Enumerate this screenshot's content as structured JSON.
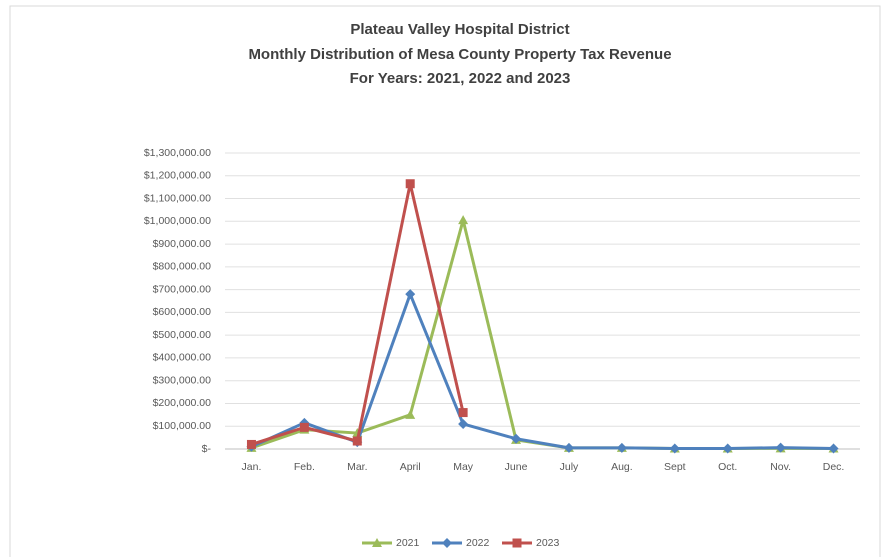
{
  "chart_data": {
    "type": "line",
    "title": [
      "Plateau Valley Hospital District",
      "Monthly Distribution of Mesa County Property Tax Revenue",
      "For Years:  2021, 2022 and 2023"
    ],
    "categories": [
      "Jan.",
      "Feb.",
      "Mar.",
      "April",
      "May",
      "June",
      "July",
      "Aug.",
      "Sept",
      "Oct.",
      "Nov.",
      "Dec."
    ],
    "series": [
      {
        "name": "2021",
        "color": "#9bbb59",
        "marker": "triangle",
        "values": [
          5000,
          85000,
          70000,
          150000,
          1005000,
          40000,
          5000,
          5000,
          2000,
          2000,
          3000,
          2000
        ]
      },
      {
        "name": "2022",
        "color": "#4f81bd",
        "marker": "diamond",
        "values": [
          10000,
          115000,
          30000,
          680000,
          110000,
          45000,
          5000,
          5000,
          2000,
          2000,
          6000,
          2000
        ]
      },
      {
        "name": "2023",
        "color": "#c0504d",
        "marker": "square",
        "values": [
          20000,
          95000,
          35000,
          1165000,
          160000,
          null,
          null,
          null,
          null,
          null,
          null,
          null
        ]
      }
    ],
    "ylim": [
      0,
      1300000
    ],
    "yticks": [
      {
        "value": 0,
        "label": "$-"
      },
      {
        "value": 100000,
        "label": "$100,000.00"
      },
      {
        "value": 200000,
        "label": "$200,000.00"
      },
      {
        "value": 300000,
        "label": "$300,000.00"
      },
      {
        "value": 400000,
        "label": "$400,000.00"
      },
      {
        "value": 500000,
        "label": "$500,000.00"
      },
      {
        "value": 600000,
        "label": "$600,000.00"
      },
      {
        "value": 700000,
        "label": "$700,000.00"
      },
      {
        "value": 800000,
        "label": "$800,000.00"
      },
      {
        "value": 900000,
        "label": "$900,000.00"
      },
      {
        "value": 1000000,
        "label": "$1,000,000.00"
      },
      {
        "value": 1100000,
        "label": "$1,100,000.00"
      },
      {
        "value": 1200000,
        "label": "$1,200,000.00"
      },
      {
        "value": 1300000,
        "label": "$1,300,000.00"
      }
    ],
    "grid": true,
    "legend": "bottom"
  }
}
